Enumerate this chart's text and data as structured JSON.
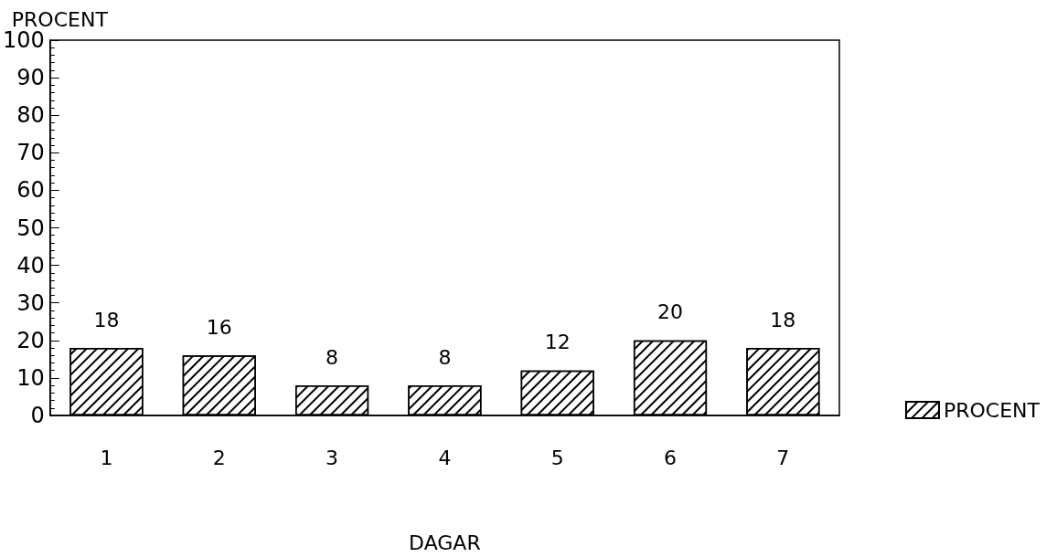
{
  "chart_data": {
    "type": "bar",
    "xlabel": "DAGAR",
    "ylabel": "PROCENT",
    "categories": [
      "1",
      "2",
      "3",
      "4",
      "5",
      "6",
      "7"
    ],
    "series": [
      {
        "name": "PROCENT",
        "color": "#000000",
        "values": [
          18,
          16,
          8,
          8,
          12,
          20,
          18
        ]
      }
    ],
    "ylim": [
      0,
      100
    ],
    "yticks": [
      0,
      10,
      20,
      30,
      40,
      50,
      60,
      70,
      80,
      90,
      100
    ],
    "data_labels": true,
    "grid": false,
    "legend": "bottom right"
  }
}
